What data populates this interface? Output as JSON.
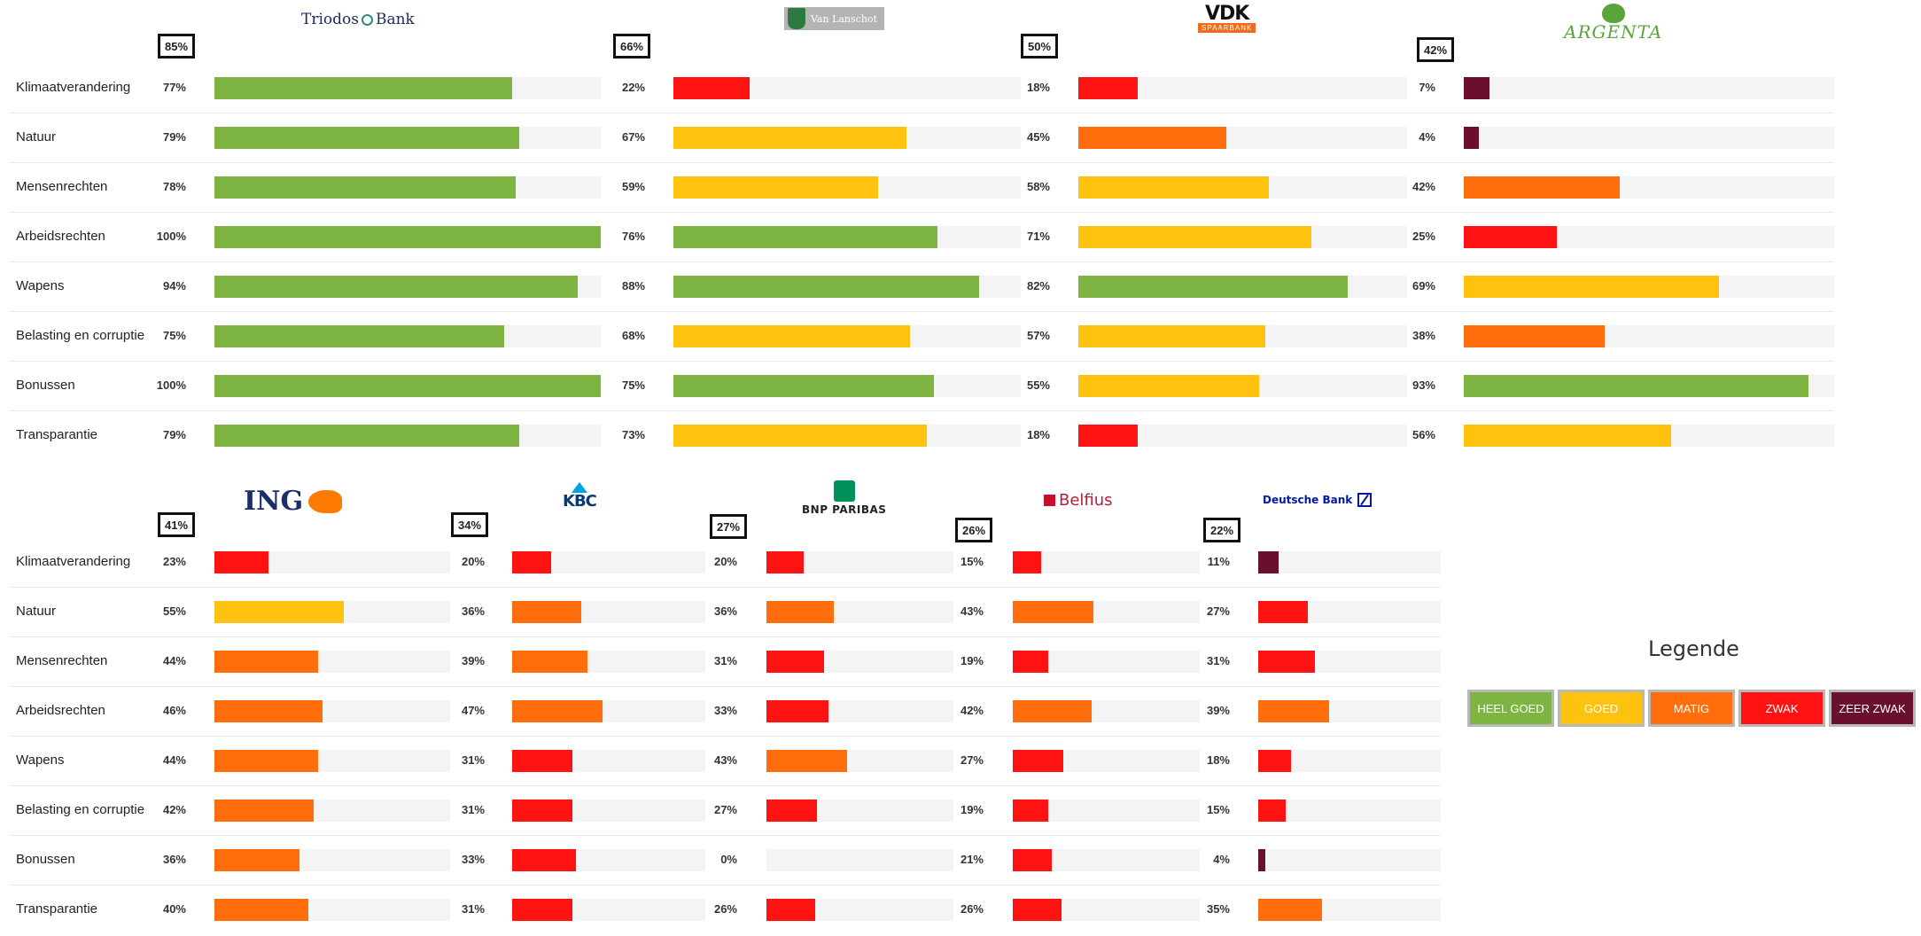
{
  "chart_data": {
    "type": "bar",
    "orientation": "horizontal",
    "categories": [
      "Klimaatverandering",
      "Natuur",
      "Mensenrechten",
      "Arbeidsrechten",
      "Wapens",
      "Belasting en corruptie",
      "Bonussen",
      "Transparantie"
    ],
    "xlim": [
      0,
      100
    ],
    "legend": {
      "title": "Legende",
      "placement": "right",
      "items": [
        {
          "label": "HEEL GOED",
          "color": "#7db442"
        },
        {
          "label": "GOED",
          "color": "#ffc20e"
        },
        {
          "label": "MATIG",
          "color": "#ff6d0d"
        },
        {
          "label": "ZWAK",
          "color": "#ff1212"
        },
        {
          "label": "ZEER ZWAK",
          "color": "#6b0f2e"
        }
      ]
    },
    "series": [
      {
        "name": "Triodos Bank",
        "logo": "triodos",
        "total": "85%",
        "values": [
          77,
          79,
          78,
          100,
          94,
          75,
          100,
          79
        ],
        "labels": [
          "77%",
          "79%",
          "78%",
          "100%",
          "94%",
          "75%",
          "100%",
          "79%"
        ],
        "colors": [
          "#7db442",
          "#7db442",
          "#7db442",
          "#7db442",
          "#7db442",
          "#7db442",
          "#7db442",
          "#7db442"
        ]
      },
      {
        "name": "Van Lanschot",
        "logo": "vanlanschot",
        "total": "66%",
        "values": [
          22,
          67,
          59,
          76,
          88,
          68,
          75,
          73
        ],
        "labels": [
          "22%",
          "67%",
          "59%",
          "76%",
          "88%",
          "68%",
          "75%",
          "73%"
        ],
        "colors": [
          "#ff1212",
          "#ffc20e",
          "#ffc20e",
          "#7db442",
          "#7db442",
          "#ffc20e",
          "#7db442",
          "#ffc20e"
        ]
      },
      {
        "name": "VDK Spaarbank",
        "logo": "vdk",
        "total": "50%",
        "values": [
          18,
          45,
          58,
          71,
          82,
          57,
          55,
          18
        ],
        "labels": [
          "18%",
          "45%",
          "58%",
          "71%",
          "82%",
          "57%",
          "55%",
          "18%"
        ],
        "colors": [
          "#ff1212",
          "#ff6d0d",
          "#ffc20e",
          "#ffc20e",
          "#7db442",
          "#ffc20e",
          "#ffc20e",
          "#ff1212"
        ]
      },
      {
        "name": "Argenta",
        "logo": "argenta",
        "total": "42%",
        "values": [
          7,
          4,
          42,
          25,
          69,
          38,
          93,
          56
        ],
        "labels": [
          "7%",
          "4%",
          "42%",
          "25%",
          "69%",
          "38%",
          "93%",
          "56%"
        ],
        "colors": [
          "#6b0f2e",
          "#6b0f2e",
          "#ff6d0d",
          "#ff1212",
          "#ffc20e",
          "#ff6d0d",
          "#7db442",
          "#ffc20e"
        ]
      },
      {
        "name": "ING",
        "logo": "ing",
        "total": "41%",
        "values": [
          23,
          55,
          44,
          46,
          44,
          42,
          36,
          40
        ],
        "labels": [
          "23%",
          "55%",
          "44%",
          "46%",
          "44%",
          "42%",
          "36%",
          "40%"
        ],
        "colors": [
          "#ff1212",
          "#ffc20e",
          "#ff6d0d",
          "#ff6d0d",
          "#ff6d0d",
          "#ff6d0d",
          "#ff6d0d",
          "#ff6d0d"
        ]
      },
      {
        "name": "KBC",
        "logo": "kbc",
        "total": "34%",
        "values": [
          20,
          36,
          39,
          47,
          31,
          31,
          33,
          31
        ],
        "labels": [
          "20%",
          "36%",
          "39%",
          "47%",
          "31%",
          "31%",
          "33%",
          "31%"
        ],
        "colors": [
          "#ff1212",
          "#ff6d0d",
          "#ff6d0d",
          "#ff6d0d",
          "#ff1212",
          "#ff1212",
          "#ff1212",
          "#ff1212"
        ]
      },
      {
        "name": "BNP PARIBAS",
        "logo": "bnp",
        "total": "27%",
        "values": [
          20,
          36,
          31,
          33,
          43,
          27,
          0,
          26
        ],
        "labels": [
          "20%",
          "36%",
          "31%",
          "33%",
          "43%",
          "27%",
          "0%",
          "26%"
        ],
        "colors": [
          "#ff1212",
          "#ff6d0d",
          "#ff1212",
          "#ff1212",
          "#ff6d0d",
          "#ff1212",
          "#ff1212",
          "#ff1212"
        ]
      },
      {
        "name": "Belfius",
        "logo": "belfius",
        "total": "26%",
        "values": [
          15,
          43,
          19,
          42,
          27,
          19,
          21,
          26
        ],
        "labels": [
          "15%",
          "43%",
          "19%",
          "42%",
          "27%",
          "19%",
          "21%",
          "26%"
        ],
        "colors": [
          "#ff1212",
          "#ff6d0d",
          "#ff1212",
          "#ff6d0d",
          "#ff1212",
          "#ff1212",
          "#ff1212",
          "#ff1212"
        ]
      },
      {
        "name": "Deutsche Bank",
        "logo": "deutsche",
        "total": "22%",
        "values": [
          11,
          27,
          31,
          39,
          18,
          15,
          4,
          35
        ],
        "labels": [
          "11%",
          "27%",
          "31%",
          "39%",
          "18%",
          "15%",
          "4%",
          "35%"
        ],
        "colors": [
          "#6b0f2e",
          "#ff1212",
          "#ff1212",
          "#ff6d0d",
          "#ff1212",
          "#ff1212",
          "#6b0f2e",
          "#ff6d0d"
        ]
      }
    ]
  }
}
